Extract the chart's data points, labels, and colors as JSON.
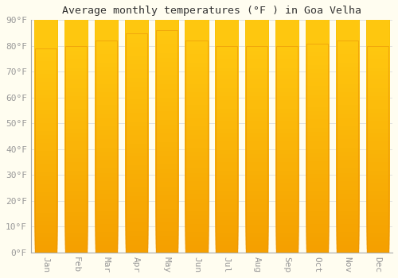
{
  "title": "Average monthly temperatures (°F ) in Goa Velha",
  "months": [
    "Jan",
    "Feb",
    "Mar",
    "Apr",
    "May",
    "Jun",
    "Jul",
    "Aug",
    "Sep",
    "Oct",
    "Nov",
    "Dec"
  ],
  "values": [
    79,
    80,
    82,
    85,
    86,
    82,
    80,
    80,
    80,
    81,
    82,
    80
  ],
  "bar_color_top": "#FFB732",
  "bar_color_bottom": "#F5A000",
  "background_color": "#FFFDF0",
  "grid_color": "#DDDDDD",
  "ylim": [
    0,
    90
  ],
  "yticks": [
    0,
    10,
    20,
    30,
    40,
    50,
    60,
    70,
    80,
    90
  ],
  "title_fontsize": 9.5,
  "tick_fontsize": 8,
  "tick_color": "#999999"
}
